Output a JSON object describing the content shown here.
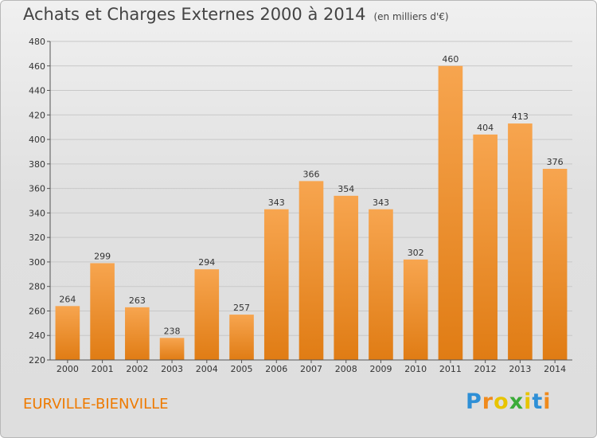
{
  "header": {
    "title": "Achats et Charges Externes 2000 à 2014",
    "unit": "(en milliers d'€)"
  },
  "footer": {
    "commune": "EURVILLE-BIENVILLE",
    "logo": {
      "text": "Proxiti",
      "colors": [
        "#2e8fd6",
        "#f08a1c",
        "#e8c400",
        "#3aab38",
        "#e8c400",
        "#2e8fd6",
        "#f08a1c"
      ]
    }
  },
  "colors": {
    "bar_light": "#f7a54f",
    "bar_dark": "#e07c14",
    "grid": "#c8c8c8"
  },
  "chart_data": {
    "type": "bar",
    "title": "Achats et Charges Externes 2000 à 2014",
    "categories": [
      "2000",
      "2001",
      "2002",
      "2003",
      "2004",
      "2005",
      "2006",
      "2007",
      "2008",
      "2009",
      "2010",
      "2011",
      "2012",
      "2013",
      "2014"
    ],
    "values": [
      264,
      299,
      263,
      238,
      294,
      257,
      343,
      366,
      354,
      343,
      302,
      460,
      404,
      413,
      376
    ],
    "ylim": [
      220,
      480
    ],
    "yticks": [
      220,
      240,
      260,
      280,
      300,
      320,
      340,
      360,
      380,
      400,
      420,
      440,
      460,
      480
    ],
    "grid": true,
    "data_labels": true
  }
}
